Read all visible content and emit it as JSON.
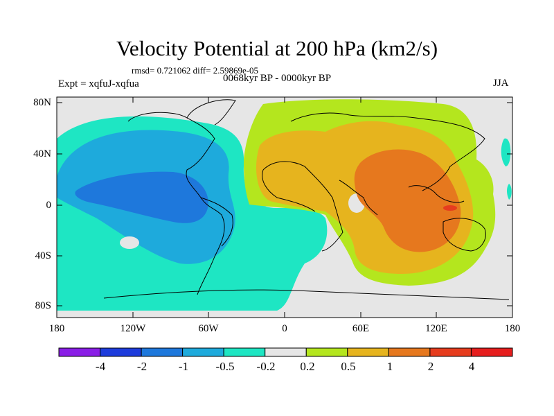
{
  "title": "Velocity Potential at 200 hPa (km2/s)",
  "stats": "rmsd= 0.721062 diff= 2.59869e-05",
  "expt": "Expt = xqfuJ-xqfua",
  "period": "0068kyr BP - 0000kyr BP",
  "season": "JJA",
  "y_axis_labels": [
    "80N",
    "40N",
    "0",
    "40S",
    "80S"
  ],
  "x_axis_labels": [
    "180",
    "120W",
    "60W",
    "0",
    "60E",
    "120E",
    "180"
  ],
  "colorbar": {
    "labels": [
      "-4",
      "-2",
      "-1",
      "-0.5",
      "-0.2",
      "0.2",
      "0.5",
      "1",
      "2",
      "4"
    ],
    "colors": [
      "#8a1ee6",
      "#1e3cdc",
      "#1e78dc",
      "#1eaadc",
      "#1ee6c3",
      "#e6e6e6",
      "#b4e61e",
      "#e6b41e",
      "#e6781e",
      "#e63c1e",
      "#e61e1e"
    ]
  }
}
